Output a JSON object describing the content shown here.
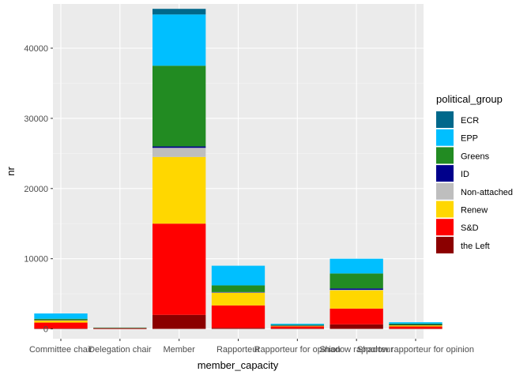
{
  "chart_data": {
    "type": "bar",
    "stacked": true,
    "categories": [
      "Committee chair",
      "Delegation chair",
      "Member",
      "Rapporteur",
      "Rapporteur for opinion",
      "Shadow rapporteur",
      "Shadow rapporteur for opinion"
    ],
    "xlabel": "member_capacity",
    "ylabel": "nr",
    "ylim": [
      -1400,
      46300
    ],
    "yticks": [
      0,
      10000,
      20000,
      30000,
      40000
    ],
    "grid": true,
    "legend": {
      "title": "political_group",
      "position": "right"
    },
    "series": [
      {
        "name": "the Left",
        "color": "#8B0000",
        "values": [
          60,
          30,
          2000,
          150,
          60,
          650,
          40
        ]
      },
      {
        "name": "S&D",
        "color": "#FF0000",
        "values": [
          840,
          80,
          13000,
          3200,
          290,
          2250,
          310
        ]
      },
      {
        "name": "Renew",
        "color": "#FFD700",
        "values": [
          350,
          40,
          9500,
          1800,
          120,
          2600,
          200
        ]
      },
      {
        "name": "Non-attached",
        "color": "#BEBEBE",
        "values": [
          20,
          5,
          1300,
          60,
          15,
          70,
          15
        ]
      },
      {
        "name": "ID",
        "color": "#00008B",
        "values": [
          20,
          5,
          200,
          40,
          5,
          200,
          5
        ]
      },
      {
        "name": "Greens",
        "color": "#228B22",
        "values": [
          150,
          30,
          11500,
          950,
          90,
          2130,
          170
        ]
      },
      {
        "name": "EPP",
        "color": "#00BFFF",
        "values": [
          760,
          0,
          7300,
          2800,
          160,
          2100,
          210
        ]
      },
      {
        "name": "ECR",
        "color": "#00688B",
        "values": [
          0,
          0,
          800,
          0,
          0,
          0,
          0
        ]
      }
    ]
  }
}
